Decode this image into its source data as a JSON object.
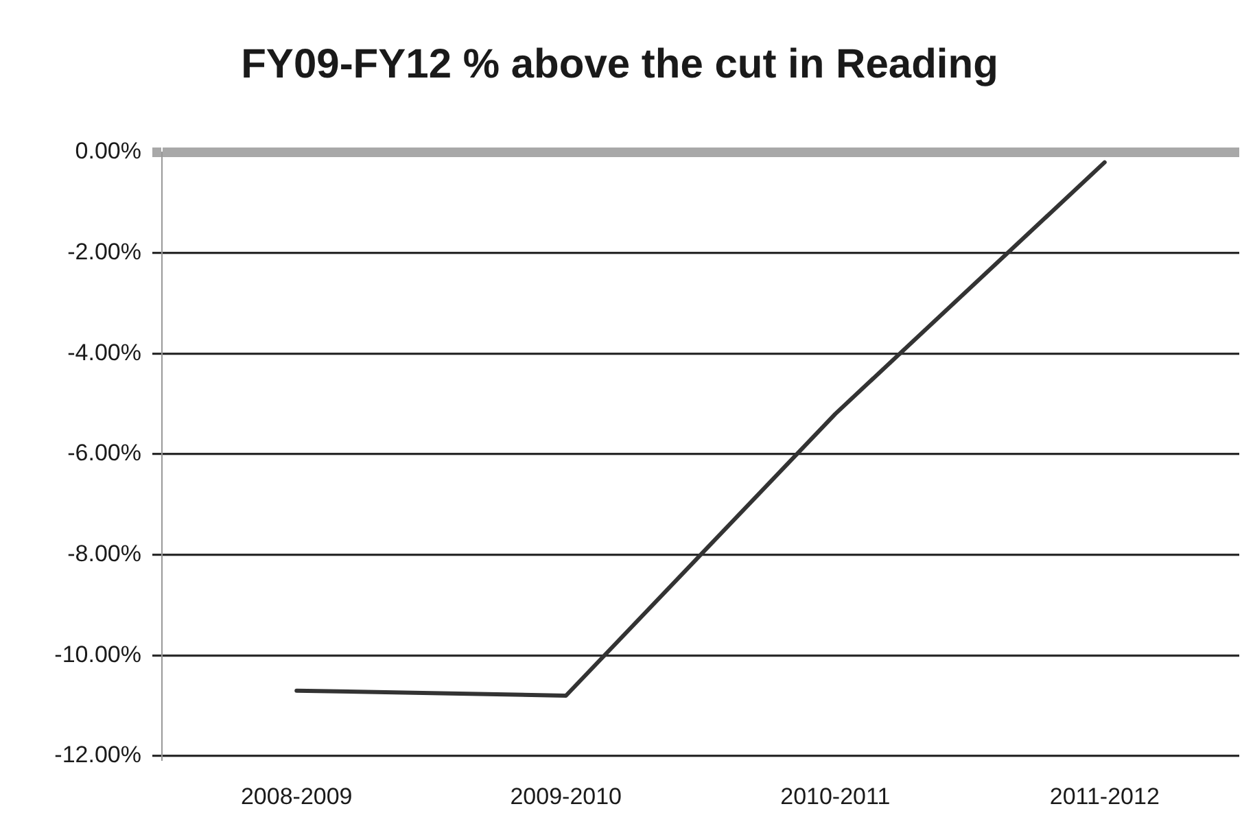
{
  "chart_data": {
    "type": "line",
    "title": "FY09-FY12 % above the cut in Reading",
    "categories": [
      "2008-2009",
      "2009-2010",
      "2010-2011",
      "2011-2012"
    ],
    "series": [
      {
        "color": "#333333",
        "values": [
          -10.7,
          -10.8,
          -5.2,
          -0.2
        ]
      }
    ],
    "ylim": [
      -12,
      0
    ],
    "yticks": [
      {
        "value": 0,
        "label": "0.00%"
      },
      {
        "value": -2,
        "label": "-2.00%"
      },
      {
        "value": -4,
        "label": "-4.00%"
      },
      {
        "value": -6,
        "label": "-6.00%"
      },
      {
        "value": -8,
        "label": "-8.00%"
      },
      {
        "value": -10,
        "label": "-10.00%"
      },
      {
        "value": -12,
        "label": "-12.00%"
      }
    ],
    "grid": "y",
    "marker": "none"
  }
}
